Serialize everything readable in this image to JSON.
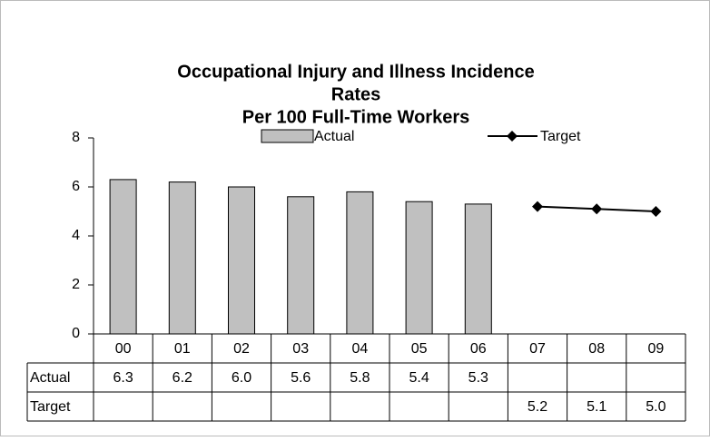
{
  "chart_data": {
    "type": "bar-line",
    "title": [
      "Occupational Injury and Illness Incidence",
      "Rates",
      "Per 100 Full-Time Workers"
    ],
    "categories": [
      "00",
      "01",
      "02",
      "03",
      "04",
      "05",
      "06",
      "07",
      "08",
      "09"
    ],
    "series": [
      {
        "name": "Actual",
        "type": "bar",
        "color": "#c0c0c0",
        "values": [
          6.3,
          6.2,
          6.0,
          5.6,
          5.8,
          5.4,
          5.3,
          null,
          null,
          null
        ],
        "value_labels": [
          "6.3",
          "6.2",
          "6.0",
          "5.6",
          "5.8",
          "5.4",
          "5.3",
          null,
          null,
          null
        ]
      },
      {
        "name": "Target",
        "type": "line",
        "color": "#000000",
        "values": [
          null,
          null,
          null,
          null,
          null,
          null,
          null,
          5.2,
          5.1,
          5.0
        ],
        "value_labels": [
          null,
          null,
          null,
          null,
          null,
          null,
          null,
          "5.2",
          "5.1",
          "5.0"
        ]
      }
    ],
    "ylim": [
      0,
      8
    ],
    "yticks": [
      0,
      2,
      4,
      6,
      8
    ],
    "legend": "top"
  }
}
